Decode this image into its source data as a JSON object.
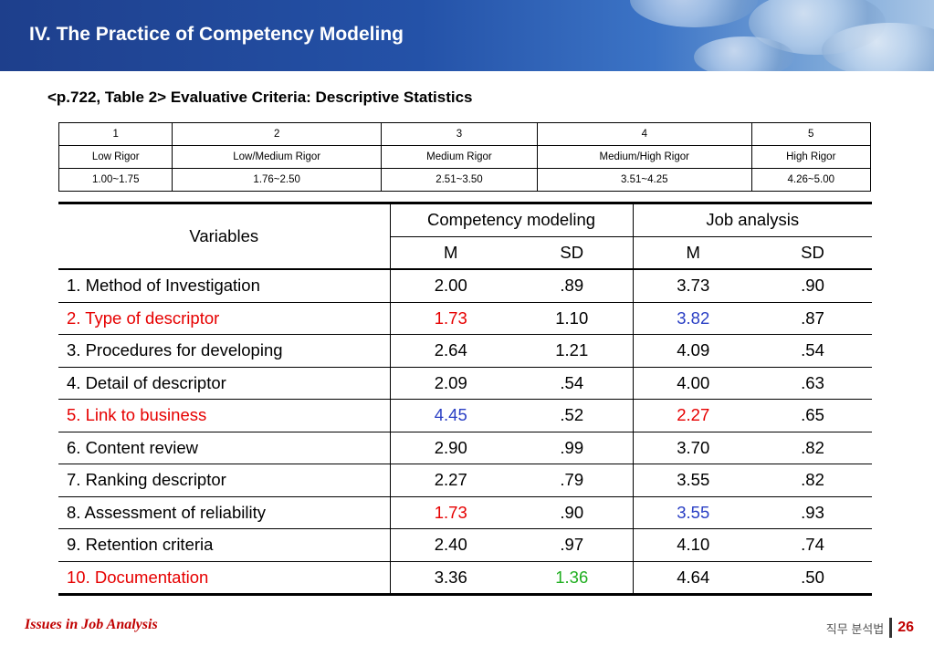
{
  "header": {
    "title": "IV. The Practice of Competency Modeling"
  },
  "subtitle": "<p.722, Table 2>  Evaluative Criteria:  Descriptive Statistics",
  "rigor_table": {
    "rows": [
      [
        "1",
        "2",
        "3",
        "4",
        "5"
      ],
      [
        "Low Rigor",
        "Low/Medium Rigor",
        "Medium Rigor",
        "Medium/High Rigor",
        "High Rigor"
      ],
      [
        "1.00~1.75",
        "1.76~2.50",
        "2.51~3.50",
        "3.51~4.25",
        "4.26~5.00"
      ]
    ]
  },
  "stats_table": {
    "col_variables": "Variables",
    "group1": "Competency modeling",
    "group2": "Job analysis",
    "m": "M",
    "sd": "SD",
    "rows": [
      {
        "name": "1. Method of Investigation",
        "cm_m": "2.00",
        "cm_sd": ".89",
        "ja_m": "3.73",
        "ja_sd": ".90"
      },
      {
        "name": "2. Type of descriptor",
        "cm_m": "1.73",
        "cm_sd": "1.10",
        "ja_m": "3.82",
        "ja_sd": ".87"
      },
      {
        "name": "3. Procedures for developing",
        "cm_m": "2.64",
        "cm_sd": "1.21",
        "ja_m": "4.09",
        "ja_sd": ".54"
      },
      {
        "name": "4. Detail of descriptor",
        "cm_m": "2.09",
        "cm_sd": ".54",
        "ja_m": "4.00",
        "ja_sd": ".63"
      },
      {
        "name": "5. Link to business",
        "cm_m": "4.45",
        "cm_sd": ".52",
        "ja_m": "2.27",
        "ja_sd": ".65"
      },
      {
        "name": "6. Content review",
        "cm_m": "2.90",
        "cm_sd": ".99",
        "ja_m": "3.70",
        "ja_sd": ".82"
      },
      {
        "name": "7. Ranking descriptor",
        "cm_m": "2.27",
        "cm_sd": ".79",
        "ja_m": "3.55",
        "ja_sd": ".82"
      },
      {
        "name": "8. Assessment of reliability",
        "cm_m": "1.73",
        "cm_sd": ".90",
        "ja_m": "3.55",
        "ja_sd": ".93"
      },
      {
        "name": "9. Retention criteria",
        "cm_m": "2.40",
        "cm_sd": ".97",
        "ja_m": "4.10",
        "ja_sd": ".74"
      },
      {
        "name": "10. Documentation",
        "cm_m": "3.36",
        "cm_sd": "1.36",
        "ja_m": "4.64",
        "ja_sd": ".50"
      }
    ]
  },
  "colors": {
    "red": "#e60000",
    "blue": "#2a3fc4",
    "green": "#1fae1f",
    "footer": "#c00000"
  },
  "footer": {
    "left": "Issues in Job Analysis",
    "korean": "직무 분석법",
    "page": "26"
  }
}
